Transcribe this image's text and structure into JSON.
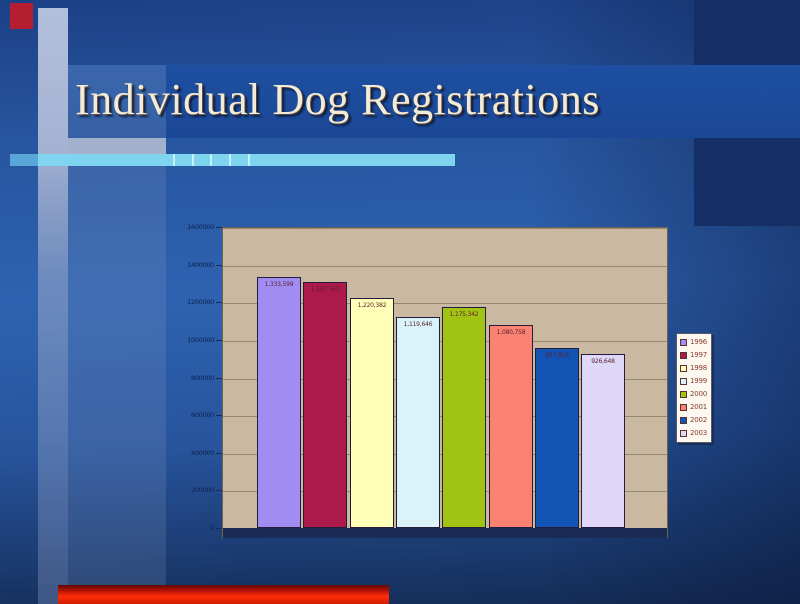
{
  "slide": {
    "title": "Individual Dog Registrations"
  },
  "chart_data": {
    "type": "bar",
    "title": "Individual Dog Registrations",
    "categories": [
      "1996",
      "1997",
      "1998",
      "1999",
      "2000",
      "2001",
      "2002",
      "2003"
    ],
    "values": [
      1333599,
      1307362,
      1220382,
      1119646,
      1175342,
      1080758,
      957918,
      926648
    ],
    "value_labels": [
      "1,333,599",
      "1,307,362",
      "1,220,382",
      "1,119,646",
      "1,175,342",
      "1,080,758",
      "957,918",
      "926,648"
    ],
    "xlabel": "",
    "ylabel": "",
    "ylim": [
      0,
      1600000
    ],
    "ytick_labels": [
      "1600000",
      "1400000",
      "1200000",
      "1000000",
      "800000",
      "600000",
      "400000",
      "200000",
      "0"
    ],
    "grid": true,
    "legend_position": "right",
    "bar_colors": [
      "#a18cf2",
      "#ab1a4a",
      "#ffffb8",
      "#d8f4f8",
      "#a1c313",
      "#f98272",
      "#1154b4",
      "#ded7f8"
    ],
    "plot_background": "#cab8a0",
    "grid_color": "#97876f",
    "axis_strip_color": "#1a2c55",
    "bar_label_color": "#5c1f2e",
    "tick_label_color": "#0d2150"
  },
  "legend": {
    "items": [
      {
        "label": "1996",
        "color": "#a18cf2"
      },
      {
        "label": "1997",
        "color": "#ab1a4a"
      },
      {
        "label": "1998",
        "color": "#ffffb8"
      },
      {
        "label": "1999",
        "color": "#d8f4f8"
      },
      {
        "label": "2000",
        "color": "#a1c313"
      },
      {
        "label": "2001",
        "color": "#f98272"
      },
      {
        "label": "2002",
        "color": "#1154b4"
      },
      {
        "label": "2003",
        "color": "#ded7f8"
      }
    ],
    "text_color": "#8a3c28",
    "background": "#fdf8f0"
  },
  "decorations": {
    "accent_red_square": "#b41e30",
    "bottom_bar_red": "#ff2d08",
    "divider_cyan": "#7fd4f0",
    "title_banner_blue": "#1d4fa2",
    "background_blue": "#2d60ae",
    "title_text_color": "#f2ebd7"
  }
}
